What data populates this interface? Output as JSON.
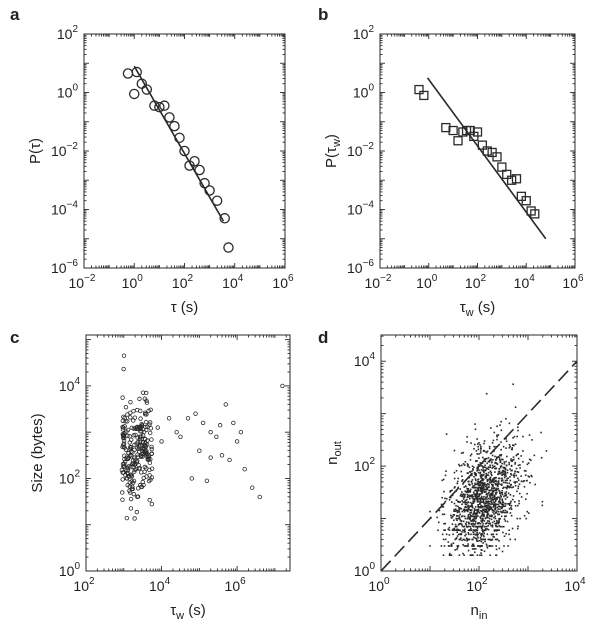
{
  "figure": {
    "panels": [
      {
        "id": "a",
        "letter": "a",
        "chart_data": {
          "type": "scatter",
          "marker": "circle",
          "xscale": "log",
          "yscale": "log",
          "xlim_exp": [
            -2,
            6
          ],
          "ylim_exp": [
            -6,
            2
          ],
          "xticks": [
            {
              "base": "10",
              "exp": "−2"
            },
            {
              "base": "10",
              "exp": "0"
            },
            {
              "base": "10",
              "exp": "2"
            },
            {
              "base": "10",
              "exp": "4"
            },
            {
              "base": "10",
              "exp": "6"
            }
          ],
          "yticks": [
            {
              "base": "10",
              "exp": "−6"
            },
            {
              "base": "10",
              "exp": "−4"
            },
            {
              "base": "10",
              "exp": "−2"
            },
            {
              "base": "10",
              "exp": "0"
            },
            {
              "base": "10",
              "exp": "2"
            }
          ],
          "xlabel": {
            "main": "τ (s)",
            "sub": ""
          },
          "ylabel": {
            "main": "P(τ)",
            "sub": ""
          },
          "points_log10": [
            [
              -0.25,
              0.65
            ],
            [
              0.0,
              -0.05
            ],
            [
              0.1,
              0.7
            ],
            [
              0.3,
              0.3
            ],
            [
              0.5,
              0.1
            ],
            [
              0.8,
              -0.45
            ],
            [
              1.0,
              -0.5
            ],
            [
              1.2,
              -0.45
            ],
            [
              1.4,
              -0.85
            ],
            [
              1.6,
              -1.15
            ],
            [
              1.8,
              -1.55
            ],
            [
              2.0,
              -2.0
            ],
            [
              2.2,
              -2.5
            ],
            [
              2.4,
              -2.35
            ],
            [
              2.6,
              -2.65
            ],
            [
              2.8,
              -3.1
            ],
            [
              3.0,
              -3.35
            ],
            [
              3.3,
              -3.7
            ],
            [
              3.6,
              -4.3
            ],
            [
              3.75,
              -5.3
            ]
          ],
          "fit_line_log10": [
            [
              0.0,
              0.9
            ],
            [
              3.55,
              -4.4
            ]
          ]
        }
      },
      {
        "id": "b",
        "letter": "b",
        "chart_data": {
          "type": "scatter",
          "marker": "square",
          "xscale": "log",
          "yscale": "log",
          "xlim_exp": [
            -2,
            6
          ],
          "ylim_exp": [
            -6,
            2
          ],
          "xticks": [
            {
              "base": "10",
              "exp": "−2"
            },
            {
              "base": "10",
              "exp": "0"
            },
            {
              "base": "10",
              "exp": "2"
            },
            {
              "base": "10",
              "exp": "4"
            },
            {
              "base": "10",
              "exp": "6"
            }
          ],
          "yticks": [
            {
              "base": "10",
              "exp": "−6"
            },
            {
              "base": "10",
              "exp": "−4"
            },
            {
              "base": "10",
              "exp": "−2"
            },
            {
              "base": "10",
              "exp": "0"
            },
            {
              "base": "10",
              "exp": "2"
            }
          ],
          "xlabel": {
            "main": "τ",
            "sub": "w",
            "tail": " (s)"
          },
          "ylabel": {
            "main": "P(τ",
            "sub": "w",
            "tail": ")"
          },
          "points_log10": [
            [
              -0.4,
              0.1
            ],
            [
              -0.2,
              -0.1
            ],
            [
              0.7,
              -1.2
            ],
            [
              1.0,
              -1.3
            ],
            [
              1.2,
              -1.65
            ],
            [
              1.4,
              -1.35
            ],
            [
              1.55,
              -1.3
            ],
            [
              1.7,
              -1.3
            ],
            [
              1.85,
              -1.5
            ],
            [
              2.0,
              -1.35
            ],
            [
              2.2,
              -1.8
            ],
            [
              2.4,
              -2.0
            ],
            [
              2.6,
              -2.05
            ],
            [
              2.8,
              -2.2
            ],
            [
              3.0,
              -2.55
            ],
            [
              3.2,
              -2.8
            ],
            [
              3.4,
              -3.0
            ],
            [
              3.6,
              -2.95
            ],
            [
              3.8,
              -3.55
            ],
            [
              4.0,
              -3.7
            ],
            [
              4.2,
              -4.05
            ],
            [
              4.35,
              -4.15
            ]
          ],
          "fit_line_log10": [
            [
              -0.05,
              0.5
            ],
            [
              4.8,
              -5.0
            ]
          ]
        }
      },
      {
        "id": "c",
        "letter": "c",
        "chart_data": {
          "type": "scatter",
          "marker": "small-circle",
          "xscale": "log",
          "yscale": "log",
          "xlim_exp": [
            2,
            7.4
          ],
          "ylim_exp": [
            0,
            5.1
          ],
          "xticks": [
            {
              "base": "10",
              "exp": "2"
            },
            {
              "base": "10",
              "exp": "4"
            },
            {
              "base": "10",
              "exp": "6"
            }
          ],
          "yticks": [
            {
              "base": "10",
              "exp": "0"
            },
            {
              "base": "10",
              "exp": "2"
            },
            {
              "base": "10",
              "exp": "4"
            }
          ],
          "xlabel": {
            "main": "τ",
            "sub": "w",
            "tail": " (s)"
          },
          "ylabel": {
            "main": "Size (bytes)",
            "sub": ""
          },
          "seed": 11,
          "dense_cluster": {
            "count": 240,
            "x_range": [
              2.95,
              3.75
            ],
            "y_center": 2.6,
            "y_spread": 1.05
          },
          "sparse_points_log10": [
            [
              3.9,
              3.1
            ],
            [
              4.0,
              2.8
            ],
            [
              4.2,
              3.3
            ],
            [
              4.4,
              3.0
            ],
            [
              4.5,
              2.9
            ],
            [
              4.7,
              3.3
            ],
            [
              4.9,
              3.4
            ],
            [
              5.0,
              2.6
            ],
            [
              5.1,
              3.2
            ],
            [
              5.2,
              1.95
            ],
            [
              5.3,
              3.0
            ],
            [
              5.45,
              2.9
            ],
            [
              5.55,
              3.15
            ],
            [
              5.6,
              2.5
            ],
            [
              5.7,
              3.6
            ],
            [
              5.8,
              2.4
            ],
            [
              5.9,
              3.2
            ],
            [
              6.0,
              2.8
            ],
            [
              6.1,
              3.0
            ],
            [
              6.2,
              2.2
            ],
            [
              6.4,
              1.8
            ],
            [
              6.6,
              1.6
            ],
            [
              7.2,
              4.0
            ],
            [
              4.8,
              2.0
            ],
            [
              5.3,
              2.45
            ]
          ]
        }
      },
      {
        "id": "d",
        "letter": "d",
        "chart_data": {
          "type": "scatter",
          "marker": "dot",
          "xscale": "log",
          "yscale": "log",
          "xlim_exp": [
            0,
            4
          ],
          "ylim_exp": [
            0,
            4.5
          ],
          "xticks": [
            {
              "base": "10",
              "exp": "0"
            },
            {
              "base": "10",
              "exp": "2"
            },
            {
              "base": "10",
              "exp": "4"
            }
          ],
          "yticks": [
            {
              "base": "10",
              "exp": "0"
            },
            {
              "base": "10",
              "exp": "2"
            },
            {
              "base": "10",
              "exp": "4"
            }
          ],
          "xlabel": {
            "main": "n",
            "sub": "in"
          },
          "ylabel": {
            "main": "n",
            "sub": "out"
          },
          "seed": 7,
          "dense_cloud": {
            "count": 1500,
            "x_center": 2.1,
            "x_spread": 0.85,
            "corr": 0.55
          },
          "reference_line_log10": [
            [
              0,
              0
            ],
            [
              4,
              4
            ]
          ],
          "reference_line_style": "dashed"
        }
      }
    ]
  }
}
